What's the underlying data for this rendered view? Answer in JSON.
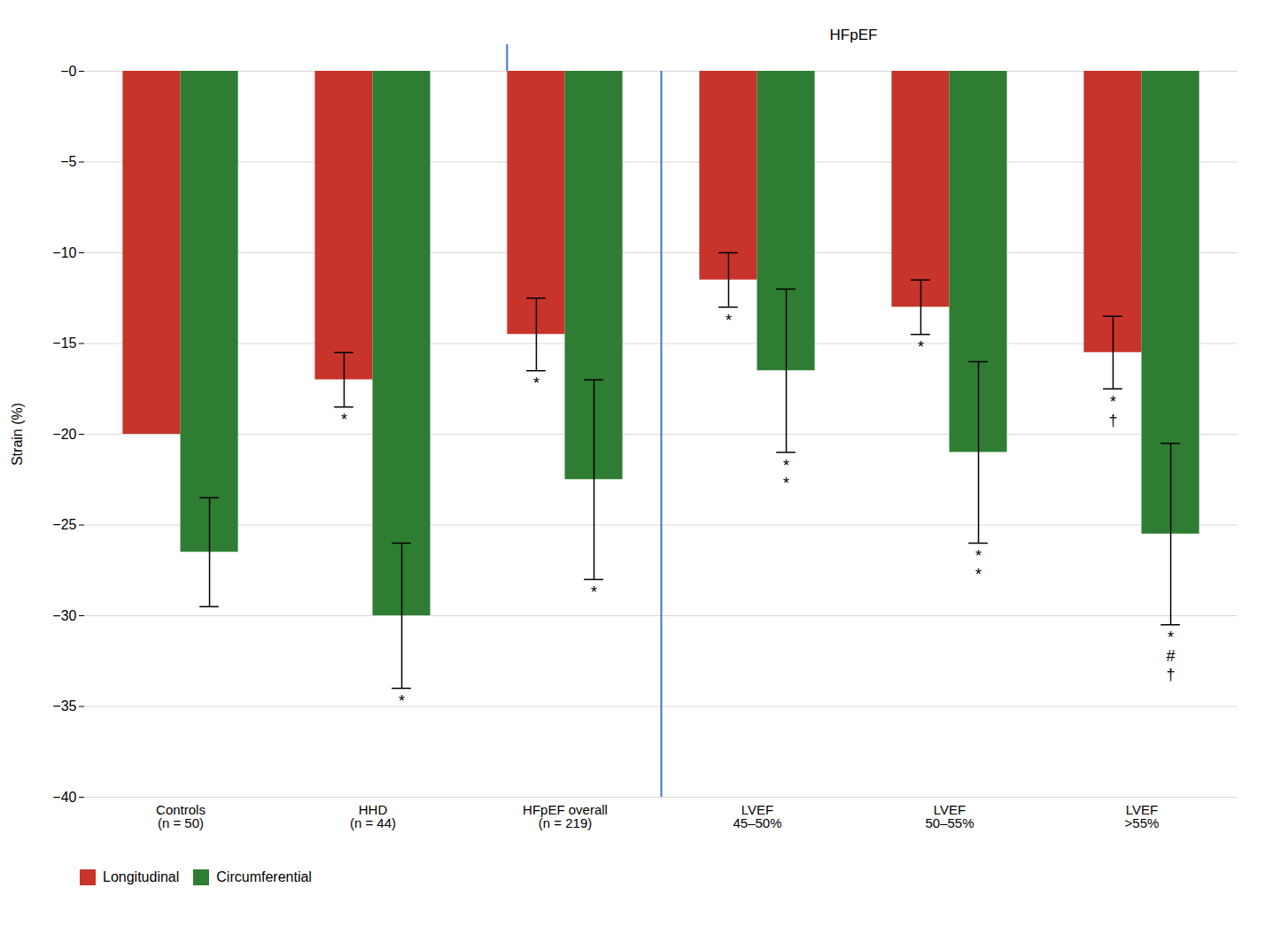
{
  "chart_data": {
    "type": "bar",
    "categories": [
      "Controls\n(n = 50)",
      "HHD\n(n = 44)",
      "HFpEF overall\n(n = 219)",
      "LVEF\n45–50%",
      "LVEF\n50–55%",
      "LVEF\n>55%"
    ],
    "series": [
      {
        "name": "Longitudinal",
        "color": "#C8332A",
        "values": [
          -20.0,
          -17.0,
          -14.5,
          -11.5,
          -13.0,
          -15.5
        ],
        "errors": [
          0,
          1.5,
          2.0,
          1.5,
          1.5,
          2.0
        ],
        "bar_annotations": [
          [],
          [
            "*"
          ],
          [
            "*"
          ],
          [
            "*"
          ],
          [
            "*"
          ],
          [
            "*",
            "†"
          ]
        ]
      },
      {
        "name": "Circumferential",
        "color": "#2E7D32",
        "values": [
          -26.5,
          -30.0,
          -22.5,
          -16.5,
          -21.0,
          -25.5
        ],
        "errors": [
          3.0,
          4.0,
          5.5,
          4.5,
          5.0,
          5.0
        ],
        "bar_annotations": [
          [],
          [
            "*"
          ],
          [
            "*"
          ],
          [
            "*",
            "*"
          ],
          [
            "*",
            "*"
          ],
          [
            "*",
            "#",
            "†"
          ]
        ]
      }
    ],
    "ylabel": "Strain (%)",
    "ylim": [
      -40,
      0
    ],
    "yticks": [
      {
        "value": 0,
        "label": "−0"
      },
      {
        "value": -5,
        "label": "−5"
      },
      {
        "value": -10,
        "label": "−10"
      },
      {
        "value": -15,
        "label": "−15"
      },
      {
        "value": -20,
        "label": "−20"
      },
      {
        "value": -25,
        "label": "−25"
      },
      {
        "value": -30,
        "label": "−30"
      },
      {
        "value": -35,
        "label": "−35"
      },
      {
        "value": -40,
        "label": "−40"
      }
    ],
    "grid": true,
    "legend": "bottom",
    "annotations": [
      {
        "text": "HFpEF",
        "from": "HFpEF overall\n(n = 219)",
        "to": "LVEF\n>55%",
        "color": "#4472C4"
      }
    ],
    "separator": {
      "after": "HFpEF overall\n(n = 219)",
      "color": "#4472C4"
    }
  }
}
